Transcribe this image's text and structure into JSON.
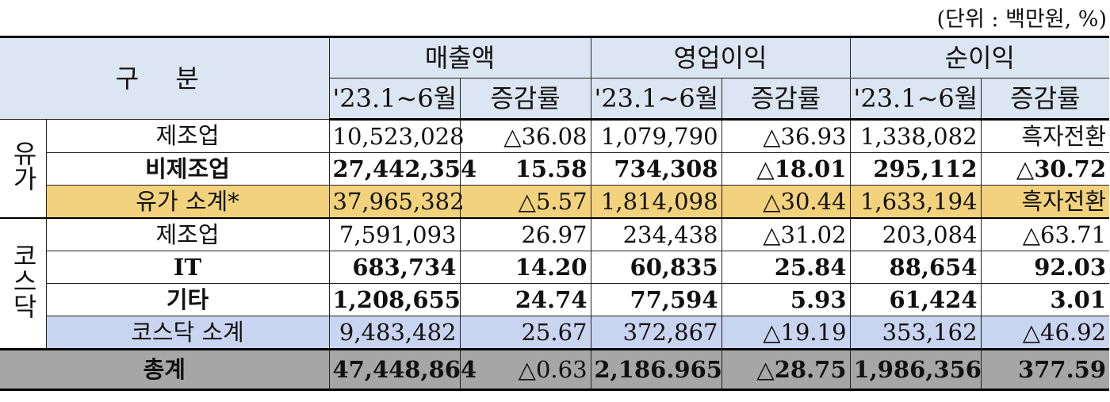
{
  "unit_note": "(단위 : 백만원, %)",
  "header": {
    "gubun": "구 분",
    "groups": [
      "매출액",
      "영업이익",
      "순이익"
    ],
    "sub": [
      "'23.1~6월",
      "증감률",
      "'23.1~6월",
      "증감률",
      "'23.1~6월",
      "증감률"
    ]
  },
  "groups": {
    "yuga": "유가",
    "kosdaq": "코스닥"
  },
  "rows": [
    {
      "label": "제조업",
      "values": [
        "10,523,028",
        "△36.08",
        "1,079,790",
        "△36.93",
        "1,338,082",
        "흑자전환"
      ]
    },
    {
      "label": "비제조업",
      "values": [
        "27,442,354",
        "15.58",
        "734,308",
        "△18.01",
        "295,112",
        "△30.72"
      ]
    },
    {
      "label": "유가 소계*",
      "values": [
        "37,965,382",
        "△5.57",
        "1,814,098",
        "△30.44",
        "1,633,194",
        "흑자전환"
      ]
    },
    {
      "label": "제조업",
      "values": [
        "7,591,093",
        "26.97",
        "234,438",
        "△31.02",
        "203,084",
        "△63.71"
      ]
    },
    {
      "label": "IT",
      "values": [
        "683,734",
        "14.20",
        "60,835",
        "25.84",
        "88,654",
        "92.03"
      ]
    },
    {
      "label": "기타",
      "values": [
        "1,208,655",
        "24.74",
        "77,594",
        "5.93",
        "61,424",
        "3.01"
      ]
    },
    {
      "label": "코스닥 소계",
      "values": [
        "9,483,482",
        "25.67",
        "372,867",
        "△19.19",
        "353,162",
        "△46.92"
      ]
    },
    {
      "label": "총계",
      "values": [
        "47,448,864",
        "△0.63",
        "2,186.965",
        "△28.75",
        "1,986,356",
        "377.59"
      ]
    }
  ]
}
